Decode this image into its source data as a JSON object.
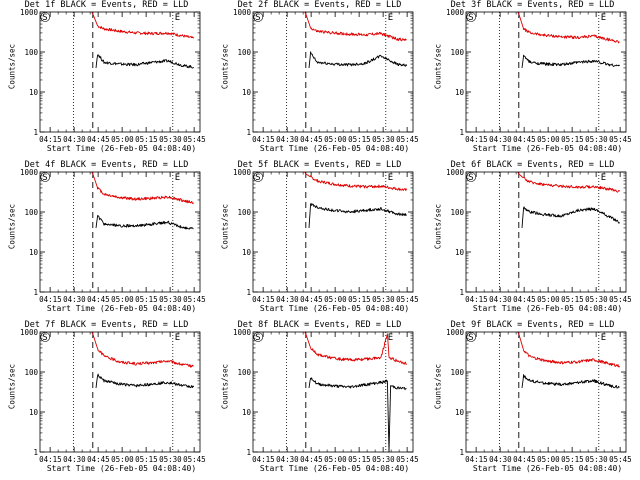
{
  "chart_data": [
    {
      "type": "line",
      "title": "Det 1f BLACK = Events, RED = LLD",
      "xlabel": "Start Time (26-Feb-05 04:08:40)",
      "ylabel": "Counts/sec",
      "x_ticks": [
        "04:15",
        "04:30",
        "04:45",
        "05:00",
        "05:15",
        "05:30",
        "05:45"
      ],
      "y_ticks": [
        "1",
        "10",
        "100",
        "1000"
      ],
      "ylim": [
        1,
        1000
      ],
      "xlim_minutes": [
        0,
        100
      ],
      "markers": {
        "S": {
          "x": 2
        },
        "E": {
          "x": 83
        },
        "dotted_lines": [
          21,
          83
        ],
        "dashed_line": 33
      },
      "series": [
        {
          "name": "LLD",
          "color": "#e00000",
          "x": [
            33,
            36,
            40,
            50,
            60,
            70,
            80,
            90,
            96
          ],
          "y": [
            900,
            450,
            380,
            330,
            300,
            290,
            300,
            250,
            220
          ]
        },
        {
          "name": "Events",
          "color": "#000000",
          "x": [
            35,
            36,
            40,
            50,
            60,
            70,
            80,
            90,
            96
          ],
          "y": [
            40,
            90,
            55,
            50,
            48,
            55,
            60,
            45,
            42
          ]
        }
      ]
    },
    {
      "type": "line",
      "title": "Det 2f BLACK = Events, RED = LLD",
      "xlabel": "Start Time (26-Feb-05 04:08:40)",
      "ylabel": "Counts/sec",
      "x_ticks": [
        "04:15",
        "04:30",
        "04:45",
        "05:00",
        "05:15",
        "05:30",
        "05:45"
      ],
      "y_ticks": [
        "1",
        "10",
        "100",
        "1000"
      ],
      "ylim": [
        1,
        1000
      ],
      "xlim_minutes": [
        0,
        100
      ],
      "markers": {
        "S": {
          "x": 2
        },
        "E": {
          "x": 83
        },
        "dotted_lines": [
          21,
          83
        ],
        "dashed_line": 33
      },
      "series": [
        {
          "name": "LLD",
          "color": "#e00000",
          "x": [
            33,
            36,
            40,
            50,
            60,
            70,
            80,
            90,
            96
          ],
          "y": [
            900,
            400,
            330,
            300,
            280,
            270,
            290,
            210,
            200
          ]
        },
        {
          "name": "Events",
          "color": "#000000",
          "x": [
            35,
            36,
            40,
            50,
            60,
            70,
            80,
            90,
            96
          ],
          "y": [
            40,
            95,
            55,
            50,
            48,
            52,
            80,
            50,
            45
          ]
        }
      ]
    },
    {
      "type": "line",
      "title": "Det 3f BLACK = Events, RED = LLD",
      "xlabel": "Start Time (26-Feb-05 04:08:40)",
      "ylabel": "Counts/sec",
      "x_ticks": [
        "04:15",
        "04:30",
        "04:45",
        "05:00",
        "05:15",
        "05:30",
        "05:45"
      ],
      "y_ticks": [
        "1",
        "10",
        "100",
        "1000"
      ],
      "ylim": [
        1,
        1000
      ],
      "xlim_minutes": [
        0,
        100
      ],
      "markers": {
        "S": {
          "x": 2
        },
        "E": {
          "x": 83
        },
        "dotted_lines": [
          21,
          83
        ],
        "dashed_line": 33
      },
      "series": [
        {
          "name": "LLD",
          "color": "#e00000",
          "x": [
            33,
            36,
            40,
            50,
            60,
            70,
            80,
            90,
            96
          ],
          "y": [
            900,
            380,
            300,
            260,
            240,
            230,
            250,
            200,
            180
          ]
        },
        {
          "name": "Events",
          "color": "#000000",
          "x": [
            35,
            36,
            40,
            50,
            60,
            70,
            80,
            90,
            96
          ],
          "y": [
            40,
            80,
            55,
            50,
            48,
            55,
            60,
            48,
            45
          ]
        }
      ]
    },
    {
      "type": "line",
      "title": "Det 4f BLACK = Events, RED = LLD",
      "xlabel": "Start Time (26-Feb-05 04:08:40)",
      "ylabel": "Counts/sec",
      "x_ticks": [
        "04:15",
        "04:30",
        "04:45",
        "05:00",
        "05:15",
        "05:30",
        "05:45"
      ],
      "y_ticks": [
        "1",
        "10",
        "100",
        "1000"
      ],
      "ylim": [
        1,
        1000
      ],
      "xlim_minutes": [
        0,
        100
      ],
      "markers": {
        "S": {
          "x": 2
        },
        "E": {
          "x": 83
        },
        "dotted_lines": [
          21,
          83
        ],
        "dashed_line": 33
      },
      "series": [
        {
          "name": "LLD",
          "color": "#e00000",
          "x": [
            33,
            36,
            40,
            50,
            60,
            70,
            80,
            90,
            96
          ],
          "y": [
            900,
            400,
            280,
            230,
            210,
            220,
            240,
            190,
            170
          ]
        },
        {
          "name": "Events",
          "color": "#000000",
          "x": [
            35,
            36,
            40,
            50,
            60,
            70,
            80,
            90,
            96
          ],
          "y": [
            40,
            80,
            50,
            45,
            45,
            50,
            55,
            40,
            38
          ]
        }
      ]
    },
    {
      "type": "line",
      "title": "Det 5f BLACK = Events, RED = LLD",
      "xlabel": "Start Time (26-Feb-05 04:08:40)",
      "ylabel": "Counts/sec",
      "x_ticks": [
        "04:15",
        "04:30",
        "04:45",
        "05:00",
        "05:15",
        "05:30",
        "05:45"
      ],
      "y_ticks": [
        "1",
        "10",
        "100",
        "1000"
      ],
      "ylim": [
        1,
        1000
      ],
      "xlim_minutes": [
        0,
        100
      ],
      "markers": {
        "S": {
          "x": 2
        },
        "E": {
          "x": 83
        },
        "dotted_lines": [
          21,
          83
        ],
        "dashed_line": 33
      },
      "series": [
        {
          "name": "LLD",
          "color": "#e00000",
          "x": [
            33,
            36,
            40,
            50,
            60,
            70,
            80,
            90,
            96
          ],
          "y": [
            900,
            750,
            600,
            500,
            450,
            430,
            440,
            380,
            350
          ]
        },
        {
          "name": "Events",
          "color": "#000000",
          "x": [
            35,
            36,
            40,
            50,
            60,
            70,
            80,
            90,
            96
          ],
          "y": [
            40,
            160,
            130,
            110,
            100,
            110,
            120,
            90,
            85
          ]
        }
      ]
    },
    {
      "type": "line",
      "title": "Det 6f BLACK = Events, RED = LLD",
      "xlabel": "Start Time (26-Feb-05 04:08:40)",
      "ylabel": "Counts/sec",
      "x_ticks": [
        "04:15",
        "04:30",
        "04:45",
        "05:00",
        "05:15",
        "05:30",
        "05:45"
      ],
      "y_ticks": [
        "1",
        "10",
        "100",
        "1000"
      ],
      "ylim": [
        1,
        1000
      ],
      "xlim_minutes": [
        0,
        100
      ],
      "markers": {
        "S": {
          "x": 2
        },
        "E": {
          "x": 83
        },
        "dotted_lines": [
          21,
          83
        ],
        "dashed_line": 33
      },
      "series": [
        {
          "name": "LLD",
          "color": "#e00000",
          "x": [
            33,
            36,
            40,
            50,
            60,
            70,
            80,
            90,
            96
          ],
          "y": [
            900,
            700,
            560,
            480,
            440,
            420,
            430,
            370,
            330
          ]
        },
        {
          "name": "Events",
          "color": "#000000",
          "x": [
            35,
            36,
            40,
            50,
            60,
            70,
            80,
            90,
            96
          ],
          "y": [
            40,
            130,
            100,
            85,
            80,
            110,
            120,
            75,
            55
          ]
        }
      ]
    },
    {
      "type": "line",
      "title": "Det 7f BLACK = Events, RED = LLD",
      "xlabel": "Start Time (26-Feb-05 04:08:40)",
      "ylabel": "Counts/sec",
      "x_ticks": [
        "04:15",
        "04:30",
        "04:45",
        "05:00",
        "05:15",
        "05:30",
        "05:45"
      ],
      "y_ticks": [
        "1",
        "10",
        "100",
        "1000"
      ],
      "ylim": [
        1,
        1000
      ],
      "xlim_minutes": [
        0,
        100
      ],
      "markers": {
        "S": {
          "x": 2
        },
        "E": {
          "x": 83
        },
        "dotted_lines": [
          21,
          83
        ],
        "dashed_line": 33
      },
      "series": [
        {
          "name": "LLD",
          "color": "#e00000",
          "x": [
            33,
            36,
            40,
            50,
            60,
            70,
            80,
            90,
            96
          ],
          "y": [
            900,
            380,
            250,
            180,
            160,
            170,
            190,
            150,
            140
          ]
        },
        {
          "name": "Events",
          "color": "#000000",
          "x": [
            35,
            36,
            40,
            50,
            60,
            70,
            80,
            90,
            96
          ],
          "y": [
            40,
            85,
            60,
            50,
            45,
            50,
            55,
            45,
            42
          ]
        }
      ]
    },
    {
      "type": "line",
      "title": "Det 8f BLACK = Events, RED = LLD",
      "xlabel": "Start Time (26-Feb-05 04:08:40)",
      "ylabel": "Counts/sec",
      "x_ticks": [
        "04:15",
        "04:30",
        "04:45",
        "05:00",
        "05:15",
        "05:30",
        "05:45"
      ],
      "y_ticks": [
        "1",
        "10",
        "100",
        "1000"
      ],
      "ylim": [
        1,
        1000
      ],
      "xlim_minutes": [
        0,
        100
      ],
      "markers": {
        "S": {
          "x": 2
        },
        "E": {
          "x": 83
        },
        "dotted_lines": [
          21,
          83
        ],
        "dashed_line": 33
      },
      "series": [
        {
          "name": "LLD",
          "color": "#e00000",
          "x": [
            33,
            36,
            40,
            50,
            60,
            70,
            80,
            84,
            85,
            86,
            90,
            96
          ],
          "y": [
            900,
            400,
            280,
            220,
            200,
            210,
            230,
            900,
            250,
            220,
            190,
            160
          ]
        },
        {
          "name": "Events",
          "color": "#000000",
          "x": [
            35,
            36,
            40,
            50,
            60,
            70,
            80,
            84,
            85,
            86,
            90,
            96
          ],
          "y": [
            40,
            75,
            50,
            45,
            42,
            48,
            55,
            60,
            1,
            45,
            40,
            38
          ]
        }
      ]
    },
    {
      "type": "line",
      "title": "Det 9f BLACK = Events, RED = LLD",
      "xlabel": "Start Time (26-Feb-05 04:08:40)",
      "ylabel": "Counts/sec",
      "x_ticks": [
        "04:15",
        "04:30",
        "04:45",
        "05:00",
        "05:15",
        "05:30",
        "05:45"
      ],
      "y_ticks": [
        "1",
        "10",
        "100",
        "1000"
      ],
      "ylim": [
        1,
        1000
      ],
      "xlim_minutes": [
        0,
        100
      ],
      "markers": {
        "S": {
          "x": 2
        },
        "E": {
          "x": 83
        },
        "dotted_lines": [
          21,
          83
        ],
        "dashed_line": 33
      },
      "series": [
        {
          "name": "LLD",
          "color": "#e00000",
          "x": [
            33,
            36,
            40,
            50,
            60,
            70,
            80,
            90,
            96
          ],
          "y": [
            900,
            350,
            240,
            190,
            170,
            180,
            200,
            160,
            140
          ]
        },
        {
          "name": "Events",
          "color": "#000000",
          "x": [
            35,
            36,
            40,
            50,
            60,
            70,
            80,
            90,
            96
          ],
          "y": [
            40,
            80,
            60,
            52,
            48,
            55,
            60,
            45,
            42
          ]
        }
      ]
    }
  ]
}
